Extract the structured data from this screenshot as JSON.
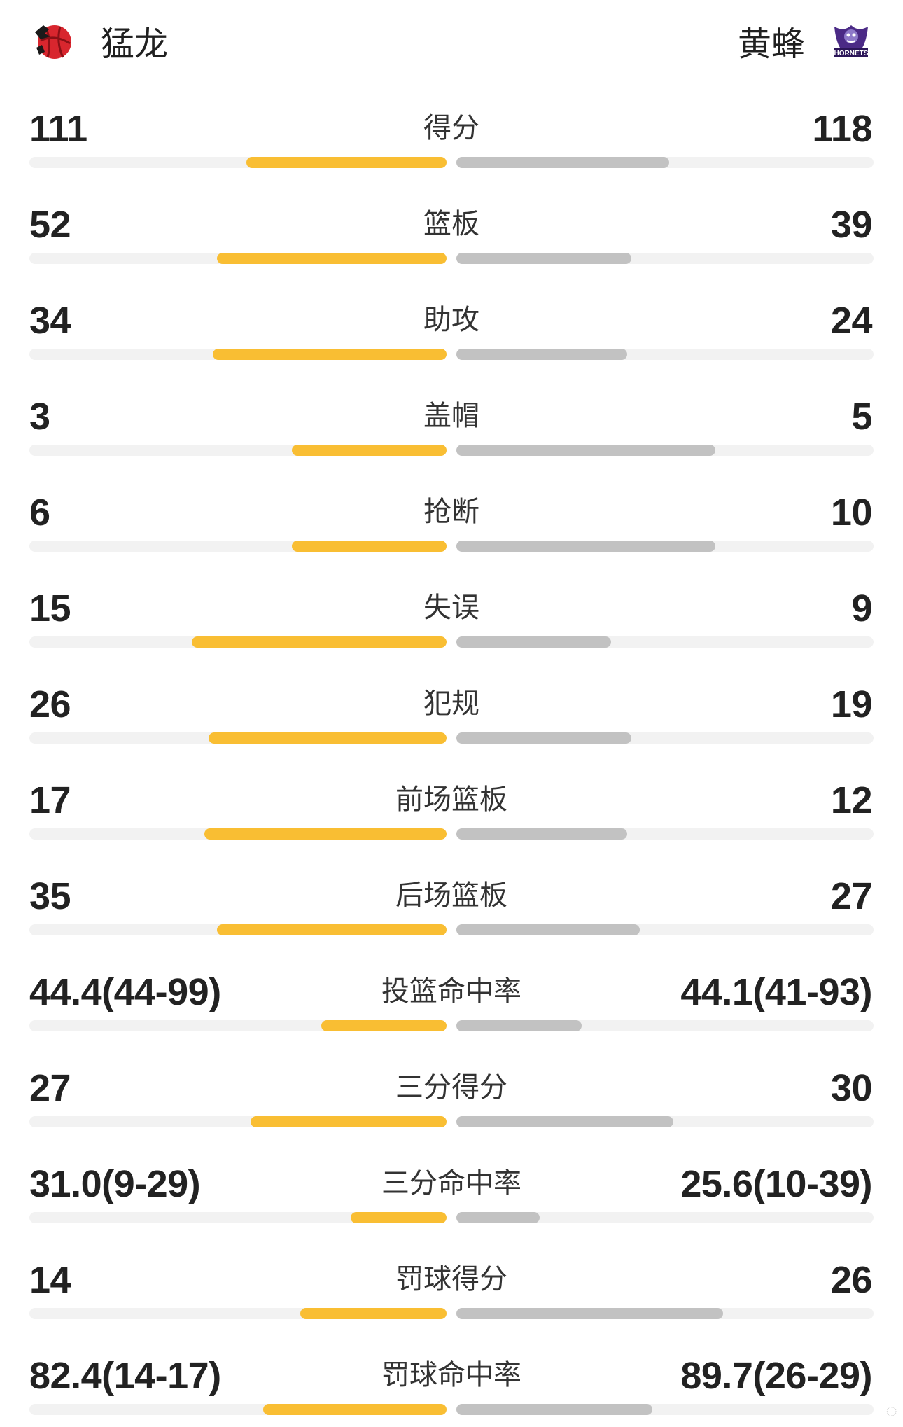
{
  "header": {
    "home_team": "猛龙",
    "away_team": "黄蜂",
    "away_logo_text": "HORNETS",
    "colors": {
      "home_bar": "#f9be33",
      "away_bar": "#c2c2c2",
      "track": "#f2f2f2"
    },
    "home_logo_icon": "raptors-basketball-logo",
    "away_logo_icon": "hornets-logo"
  },
  "stats": [
    {
      "label": "得分",
      "home": "111",
      "away": "118",
      "home_ratio": 0.48,
      "away_ratio": 0.51
    },
    {
      "label": "篮板",
      "home": "52",
      "away": "39",
      "home_ratio": 0.55,
      "away_ratio": 0.42
    },
    {
      "label": "助攻",
      "home": "34",
      "away": "24",
      "home_ratio": 0.56,
      "away_ratio": 0.41
    },
    {
      "label": "盖帽",
      "home": "3",
      "away": "5",
      "home_ratio": 0.37,
      "away_ratio": 0.62
    },
    {
      "label": "抢断",
      "home": "6",
      "away": "10",
      "home_ratio": 0.37,
      "away_ratio": 0.62
    },
    {
      "label": "失误",
      "home": "15",
      "away": "9",
      "home_ratio": 0.61,
      "away_ratio": 0.37
    },
    {
      "label": "犯规",
      "home": "26",
      "away": "19",
      "home_ratio": 0.57,
      "away_ratio": 0.42
    },
    {
      "label": "前场篮板",
      "home": "17",
      "away": "12",
      "home_ratio": 0.58,
      "away_ratio": 0.41
    },
    {
      "label": "后场篮板",
      "home": "35",
      "away": "27",
      "home_ratio": 0.55,
      "away_ratio": 0.44
    },
    {
      "label": "投篮命中率",
      "home": "44.4(44-99)",
      "away": "44.1(41-93)",
      "home_ratio": 0.3,
      "away_ratio": 0.3
    },
    {
      "label": "三分得分",
      "home": "27",
      "away": "30",
      "home_ratio": 0.47,
      "away_ratio": 0.52
    },
    {
      "label": "三分命中率",
      "home": "31.0(9-29)",
      "away": "25.6(10-39)",
      "home_ratio": 0.23,
      "away_ratio": 0.2
    },
    {
      "label": "罚球得分",
      "home": "14",
      "away": "26",
      "home_ratio": 0.35,
      "away_ratio": 0.64
    },
    {
      "label": "罚球命中率",
      "home": "82.4(14-17)",
      "away": "89.7(26-29)",
      "home_ratio": 0.44,
      "away_ratio": 0.47
    }
  ]
}
